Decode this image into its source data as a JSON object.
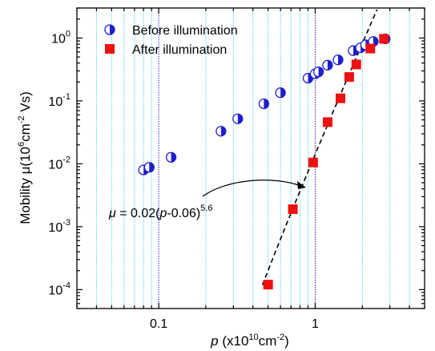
{
  "chart_data": {
    "type": "scatter",
    "xscale": "log",
    "yscale": "log",
    "xlim": [
      0.03,
      5
    ],
    "ylim": [
      5e-05,
      3
    ],
    "x_ticks": [
      {
        "value": 0.1,
        "label": "0.1"
      },
      {
        "value": 1,
        "label": "1"
      }
    ],
    "y_ticks": [
      {
        "value": 0.0001,
        "base": "10",
        "exp": "-4"
      },
      {
        "value": 0.001,
        "base": "10",
        "exp": "-3"
      },
      {
        "value": 0.01,
        "base": "10",
        "exp": "-2"
      },
      {
        "value": 0.1,
        "base": "10",
        "exp": "-1"
      },
      {
        "value": 1,
        "base": "10",
        "exp": "0"
      }
    ],
    "xlabel": {
      "var": "p",
      "pre": " (x10",
      "sup": "10",
      "post": "cm",
      "sup2": "-2",
      "end": ")"
    },
    "ylabel": {
      "pre": "Mobility μ(10",
      "sup": "6",
      "mid": "cm",
      "sup2": "-2",
      "end": " Vs)"
    },
    "grid": {
      "x_minor": true,
      "x_decade": true,
      "y": false
    },
    "legend_placement": "top-left",
    "series": [
      {
        "name": "Before illumination",
        "marker": "half-filled-circle",
        "color": "#1f1fcc",
        "points": [
          [
            0.08,
            0.008
          ],
          [
            0.087,
            0.0088
          ],
          [
            0.12,
            0.0127
          ],
          [
            0.25,
            0.033
          ],
          [
            0.32,
            0.052
          ],
          [
            0.47,
            0.09
          ],
          [
            0.6,
            0.135
          ],
          [
            0.9,
            0.23
          ],
          [
            1.0,
            0.27
          ],
          [
            1.05,
            0.29
          ],
          [
            1.2,
            0.37
          ],
          [
            1.4,
            0.45
          ],
          [
            1.75,
            0.63
          ],
          [
            1.95,
            0.7
          ],
          [
            2.1,
            0.78
          ],
          [
            2.35,
            0.88
          ],
          [
            2.8,
            0.97
          ]
        ]
      },
      {
        "name": "After illumination",
        "marker": "square",
        "color": "#ee1111",
        "points": [
          [
            0.5,
            0.00012
          ],
          [
            0.72,
            0.0019
          ],
          [
            0.97,
            0.0105
          ],
          [
            1.2,
            0.046
          ],
          [
            1.45,
            0.11
          ],
          [
            1.65,
            0.24
          ],
          [
            1.83,
            0.38
          ],
          [
            2.25,
            0.68
          ],
          [
            2.75,
            0.97
          ]
        ]
      }
    ],
    "fit": {
      "coef": 0.02,
      "offset": 0.06,
      "exponent": 5.6,
      "x_range": [
        0.46,
        2.8
      ]
    },
    "annotation": {
      "mu": "μ",
      "eq": " = 0.02(",
      "var": "p",
      "rest": "-0.06)",
      "exp": "5.6"
    }
  }
}
